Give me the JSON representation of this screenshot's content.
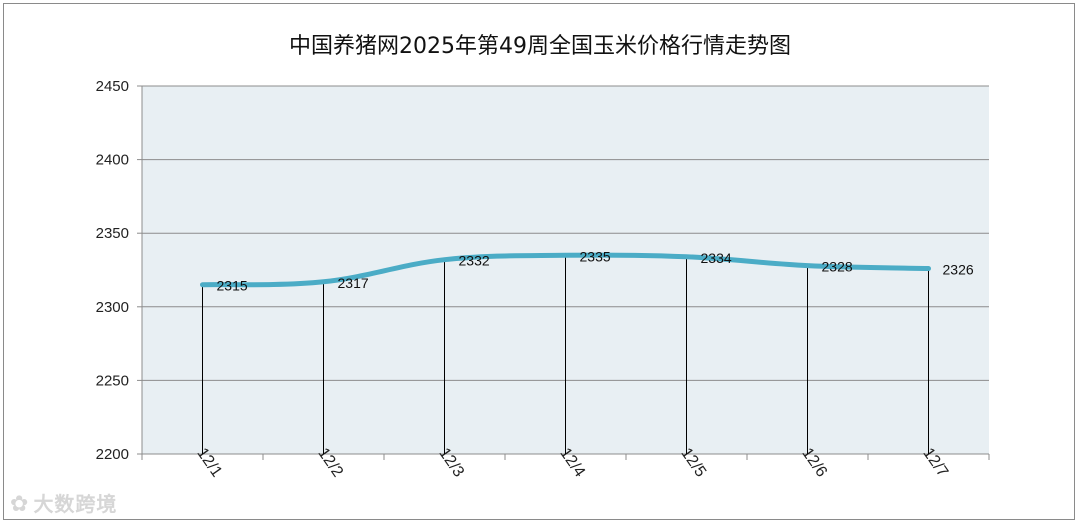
{
  "chart_data": {
    "type": "line",
    "title": "中国养猪网2025年第49周全国玉米价格行情走势图",
    "categories": [
      "12/1",
      "12/2",
      "12/3",
      "12/4",
      "12/5",
      "12/6",
      "12/7"
    ],
    "series": [
      {
        "values": [
          2315,
          2317,
          2332,
          2335,
          2334,
          2328,
          2326
        ]
      }
    ],
    "ylim": [
      2200,
      2450
    ],
    "yticks": [
      2200,
      2250,
      2300,
      2350,
      2400,
      2450
    ],
    "grid": true,
    "data_labels": true,
    "drop_lines": true,
    "colors": {
      "line": "#4bacc6",
      "plot_bg": "#e8eff3",
      "grid": "#8c8c8c"
    }
  },
  "watermark": {
    "text": "大数跨境"
  }
}
